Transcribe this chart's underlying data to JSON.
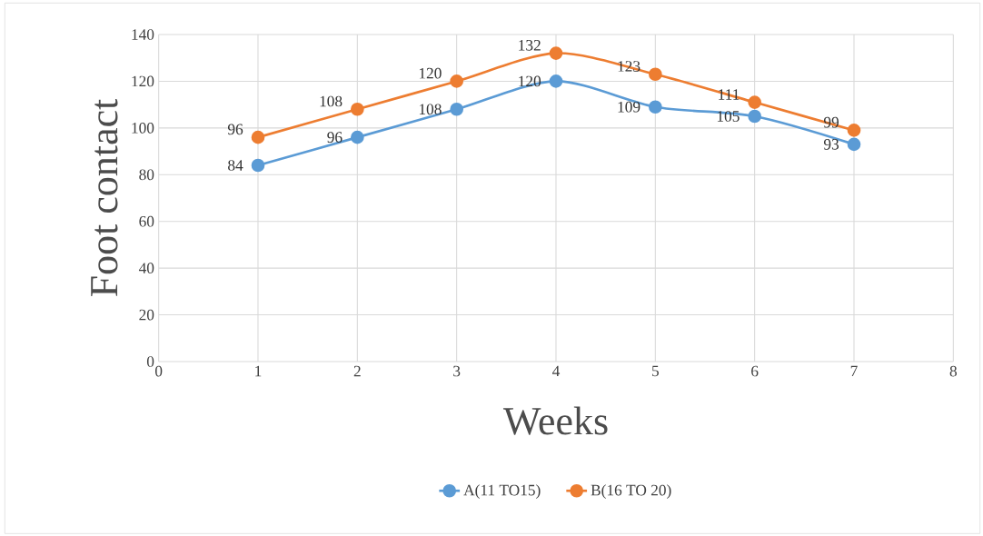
{
  "chart_data": {
    "type": "line",
    "xlabel": "Weeks",
    "ylabel": "Foot contact",
    "x": [
      1,
      2,
      3,
      4,
      5,
      6,
      7
    ],
    "series": [
      {
        "name": "A(11 TO15)",
        "color": "#5b9bd5",
        "values": [
          84,
          96,
          108,
          120,
          109,
          105,
          93
        ]
      },
      {
        "name": "B(16 TO 20)",
        "color": "#ed7d31",
        "values": [
          96,
          108,
          120,
          132,
          123,
          111,
          99
        ]
      }
    ],
    "xlim": [
      0,
      8
    ],
    "xticks": [
      0,
      1,
      2,
      3,
      4,
      5,
      6,
      7,
      8
    ],
    "ylim": [
      0,
      140
    ],
    "yticks": [
      0,
      20,
      40,
      60,
      80,
      100,
      120,
      140
    ],
    "grid": true,
    "legend": "bottom",
    "marker": "circle",
    "line_style": "solid",
    "data_labels": true
  }
}
